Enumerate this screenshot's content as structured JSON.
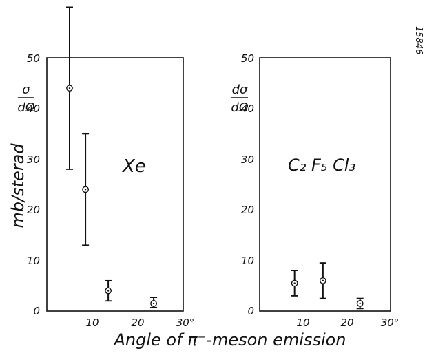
{
  "figure_id": "15846",
  "xlabel": "Angle of π⁻-meson emission",
  "ylabel": "mb/sterad",
  "chart_data": [
    {
      "type": "scatter",
      "title": "",
      "annotation": "Xe",
      "y_label_top_numer": "σ",
      "y_label_top_denom": "dΩ",
      "xlim": [
        0,
        30
      ],
      "ylim": [
        0,
        50
      ],
      "x_ticks": [
        "10",
        "20",
        "30°"
      ],
      "y_ticks": [
        "0",
        "10",
        "20",
        "30",
        "40",
        "50"
      ],
      "points": [
        {
          "x": 5,
          "y": 44,
          "err_low": 28,
          "err_high": 60
        },
        {
          "x": 8.5,
          "y": 24,
          "err_low": 13,
          "err_high": 35
        },
        {
          "x": 13.5,
          "y": 4,
          "err_low": 2,
          "err_high": 6
        },
        {
          "x": 23.5,
          "y": 1.5,
          "err_low": 0.7,
          "err_high": 2.7
        }
      ]
    },
    {
      "type": "scatter",
      "title": "",
      "annotation": "C₂ F₅ Cl₃",
      "y_label_top_numer": "dσ",
      "y_label_top_denom": "dΩ",
      "xlim": [
        0,
        30
      ],
      "ylim": [
        0,
        50
      ],
      "x_ticks": [
        "10",
        "20",
        "30°"
      ],
      "y_ticks": [
        "0",
        "10",
        "20",
        "30",
        "40",
        "50"
      ],
      "points": [
        {
          "x": 8,
          "y": 5.5,
          "err_low": 3,
          "err_high": 8
        },
        {
          "x": 14.5,
          "y": 6,
          "err_low": 2.5,
          "err_high": 9.5
        },
        {
          "x": 23,
          "y": 1.5,
          "err_low": 0.5,
          "err_high": 2.5
        }
      ]
    }
  ]
}
